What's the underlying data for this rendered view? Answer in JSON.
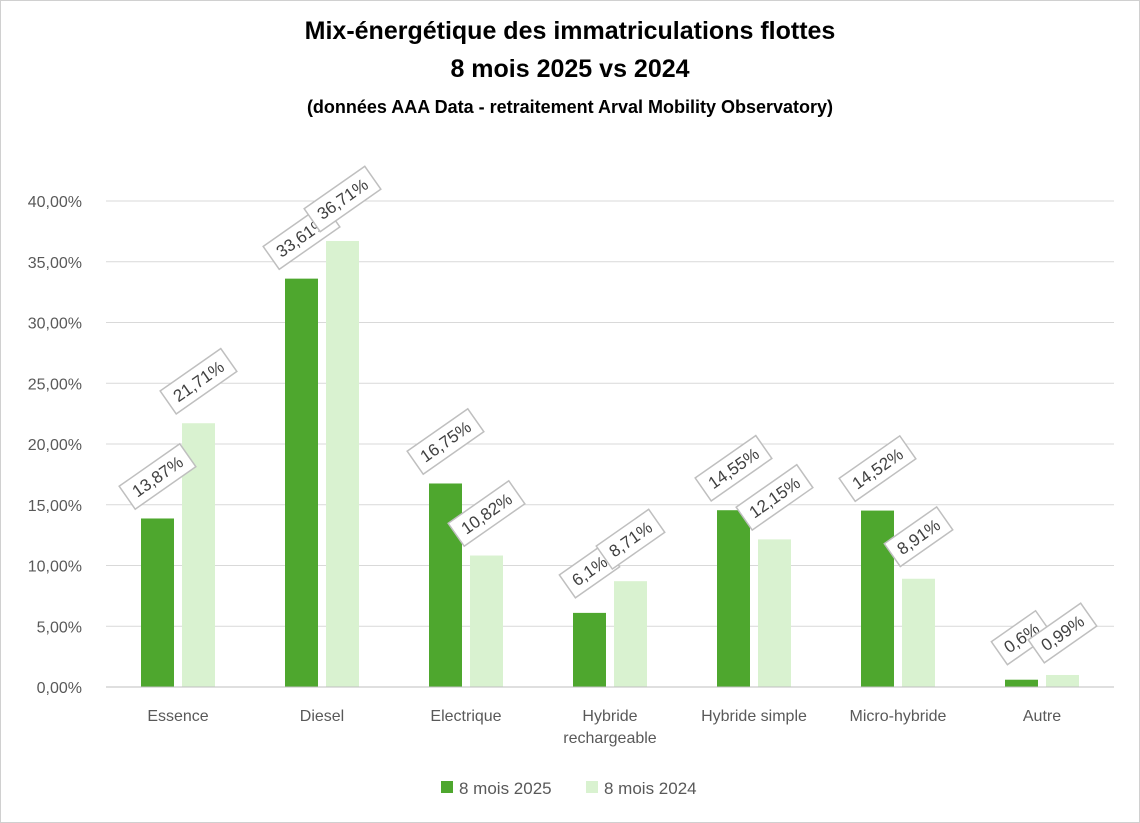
{
  "chart_data": {
    "type": "bar",
    "title": "Mix-énergétique des immatriculations flottes",
    "subtitle": "8 mois 2025 vs 2024",
    "source_note": "(données AAA Data - retraitement Arval Mobility Observatory)",
    "categories": [
      "Essence",
      "Diesel",
      "Electrique",
      "Hybride rechargeable",
      "Hybride simple",
      "Micro-hybride",
      "Autre"
    ],
    "category_lines": [
      [
        "Essence"
      ],
      [
        "Diesel"
      ],
      [
        "Electrique"
      ],
      [
        "Hybride",
        "rechargeable"
      ],
      [
        "Hybride simple"
      ],
      [
        "Micro-hybride"
      ],
      [
        "Autre"
      ]
    ],
    "series": [
      {
        "name": "8 mois 2025",
        "color": "#4EA72E",
        "values": [
          13.87,
          33.61,
          16.75,
          6.1,
          14.55,
          14.52,
          0.6
        ],
        "labels": [
          "13,87%",
          "33,61%",
          "16,75%",
          "6,1%",
          "14,55%",
          "14,52%",
          "0,6%"
        ]
      },
      {
        "name": "8 mois 2024",
        "color": "#D9F2D0",
        "values": [
          21.71,
          36.71,
          10.82,
          8.71,
          12.15,
          8.91,
          0.99
        ],
        "labels": [
          "21,71%",
          "36,71%",
          "10,82%",
          "8,71%",
          "12,15%",
          "8,91%",
          "0,99%"
        ]
      }
    ],
    "ylim": [
      0,
      40
    ],
    "yticks": [
      0,
      5,
      10,
      15,
      20,
      25,
      30,
      35,
      40
    ],
    "ytick_labels": [
      "0,00%",
      "5,00%",
      "10,00%",
      "15,00%",
      "20,00%",
      "25,00%",
      "30,00%",
      "35,00%",
      "40,00%"
    ],
    "grid": true,
    "legend_position": "bottom"
  }
}
